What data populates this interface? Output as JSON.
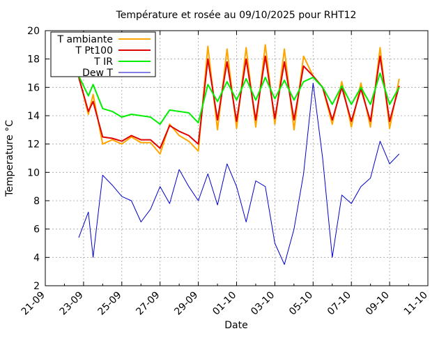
{
  "chart_data": {
    "type": "line",
    "title": "Température et rosée au 09/10/2025 pour RHT12",
    "xlabel": "Date",
    "ylabel": "Temperature °C",
    "ylim": [
      2,
      20
    ],
    "yticks": [
      2,
      4,
      6,
      8,
      10,
      12,
      14,
      16,
      18,
      20
    ],
    "xlim": [
      "2025-09-21",
      "2025-10-11"
    ],
    "xticks": [
      "21-09",
      "23-09",
      "25-09",
      "27-09",
      "29-09",
      "01-10",
      "03-10",
      "05-10",
      "07-10",
      "09-10",
      "11-10"
    ],
    "grid": true,
    "legend_position": "top-left",
    "x": [
      "2025-09-22 18:00",
      "2025-09-23 06:00",
      "2025-09-23 12:00",
      "2025-09-24 00:00",
      "2025-09-24 12:00",
      "2025-09-25 00:00",
      "2025-09-25 12:00",
      "2025-09-26 00:00",
      "2025-09-26 12:00",
      "2025-09-27 00:00",
      "2025-09-27 12:00",
      "2025-09-28 00:00",
      "2025-09-28 12:00",
      "2025-09-29 00:00",
      "2025-09-29 12:00",
      "2025-09-30 00:00",
      "2025-09-30 12:00",
      "2025-10-01 00:00",
      "2025-10-01 12:00",
      "2025-10-02 00:00",
      "2025-10-02 12:00",
      "2025-10-03 00:00",
      "2025-10-03 12:00",
      "2025-10-04 00:00",
      "2025-10-04 12:00",
      "2025-10-05 00:00",
      "2025-10-05 12:00",
      "2025-10-06 00:00",
      "2025-10-06 12:00",
      "2025-10-07 00:00",
      "2025-10-07 12:00",
      "2025-10-08 00:00",
      "2025-10-08 12:00",
      "2025-10-09 00:00",
      "2025-10-09 12:00"
    ],
    "series": [
      {
        "name": "T ambiante",
        "color": "#ffa500",
        "values": [
          16.8,
          14.1,
          15.5,
          12.0,
          12.3,
          12.0,
          12.5,
          12.1,
          12.1,
          11.3,
          13.4,
          12.6,
          12.2,
          11.5,
          18.9,
          13.0,
          18.7,
          13.1,
          18.8,
          13.2,
          19.0,
          13.4,
          18.7,
          13.0,
          18.2,
          16.8,
          16.0,
          13.4,
          16.4,
          13.2,
          16.3,
          13.2,
          18.8,
          13.1,
          16.6
        ]
      },
      {
        "name": "T Pt100",
        "color": "#e00000",
        "values": [
          16.7,
          14.3,
          15.0,
          12.5,
          12.4,
          12.2,
          12.6,
          12.3,
          12.3,
          11.7,
          13.3,
          12.9,
          12.6,
          12.0,
          18.0,
          13.7,
          17.8,
          13.6,
          18.0,
          13.7,
          18.2,
          13.8,
          17.8,
          13.7,
          17.5,
          16.8,
          16.0,
          13.7,
          16.0,
          13.6,
          15.9,
          13.6,
          18.2,
          13.6,
          16.1
        ]
      },
      {
        "name": "T IR",
        "color": "#00ee00",
        "values": [
          16.8,
          15.4,
          16.2,
          14.5,
          14.3,
          13.9,
          14.1,
          14.0,
          13.9,
          13.4,
          14.4,
          14.3,
          14.2,
          13.5,
          16.2,
          15.0,
          16.4,
          15.1,
          16.6,
          15.1,
          16.7,
          15.2,
          16.5,
          15.1,
          16.4,
          16.7,
          16.0,
          14.8,
          16.1,
          14.8,
          16.0,
          14.8,
          17.0,
          14.8,
          16.0
        ]
      },
      {
        "name": "Dew T",
        "color": "#0000cc",
        "values": [
          5.4,
          7.2,
          4.0,
          9.8,
          9.1,
          8.3,
          8.0,
          6.5,
          7.4,
          9.0,
          7.8,
          10.2,
          9.0,
          8.0,
          9.9,
          7.7,
          10.6,
          9.0,
          6.5,
          9.4,
          9.0,
          5.0,
          3.5,
          6.0,
          9.9,
          16.3,
          11.0,
          4.0,
          8.4,
          7.8,
          9.0,
          9.6,
          12.2,
          10.6,
          11.3
        ]
      }
    ]
  }
}
